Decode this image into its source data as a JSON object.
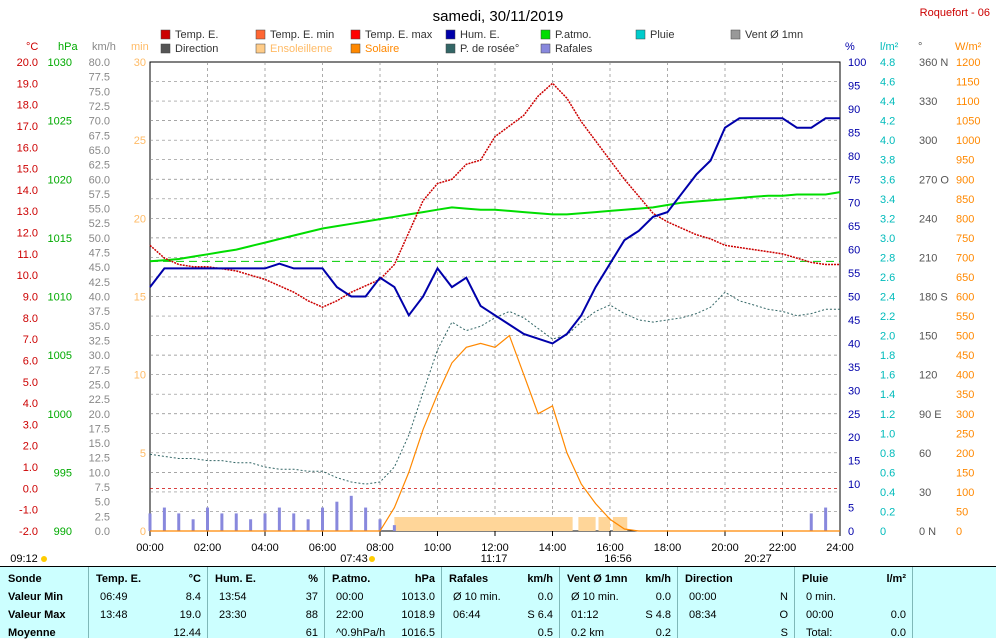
{
  "title": "samedi, 30/11/2019",
  "station": "Roquefort - 06",
  "legend": [
    {
      "label": "Temp. E.",
      "color": "#cc0000"
    },
    {
      "label": "Temp. E. min",
      "color": "#ff6633"
    },
    {
      "label": "Temp. E. max",
      "color": "#ff0000"
    },
    {
      "label": "Hum. E.",
      "color": "#0000aa"
    },
    {
      "label": "P.atmo.",
      "color": "#00dd00"
    },
    {
      "label": "Pluie",
      "color": "#00cccc"
    },
    {
      "label": "Vent Ø 1mn",
      "color": "#999999"
    },
    {
      "label": "Direction",
      "color": "#555555"
    },
    {
      "label": "Ensoleilleme",
      "color": "#ffcc88"
    },
    {
      "label": "Solaire",
      "color": "#ff8800"
    },
    {
      "label": "P. de rosée°",
      "color": "#336666"
    },
    {
      "label": "Rafales",
      "color": "#8888dd"
    }
  ],
  "axes_units": {
    "temp": "°C",
    "press": "hPa",
    "wind": "km/h",
    "min": "min",
    "hum": "%",
    "rain": "l/m²",
    "dir": "°",
    "solar": "W/m²"
  },
  "axis_ticks": {
    "temp": [
      "20.0",
      "19.0",
      "18.0",
      "17.0",
      "16.0",
      "15.0",
      "14.0",
      "13.0",
      "12.0",
      "11.0",
      "10.0",
      "9.0",
      "8.0",
      "7.0",
      "6.0",
      "5.0",
      "4.0",
      "3.0",
      "2.0",
      "1.0",
      "0.0",
      "-1.0",
      "-2.0"
    ],
    "press": [
      "1030",
      "1025",
      "1020",
      "1015",
      "1010",
      "1005",
      "1000",
      "995",
      "990"
    ],
    "wind": [
      "80.0",
      "77.5",
      "75.0",
      "72.5",
      "70.0",
      "67.5",
      "65.0",
      "62.5",
      "60.0",
      "57.5",
      "55.0",
      "52.5",
      "50.0",
      "47.5",
      "45.0",
      "42.5",
      "40.0",
      "37.5",
      "35.0",
      "32.5",
      "30.0",
      "27.5",
      "25.0",
      "22.5",
      "20.0",
      "17.5",
      "15.0",
      "12.5",
      "10.0",
      "7.5",
      "5.0",
      "2.5",
      "0.0"
    ],
    "min": [
      "30",
      "25",
      "20",
      "15",
      "10",
      "5",
      "0"
    ],
    "hum": [
      "100",
      "95",
      "90",
      "85",
      "80",
      "75",
      "70",
      "65",
      "60",
      "55",
      "50",
      "45",
      "40",
      "35",
      "30",
      "25",
      "20",
      "15",
      "10",
      "5",
      "0"
    ],
    "rain": [
      "4.8",
      "4.6",
      "4.4",
      "4.2",
      "4.0",
      "3.8",
      "3.6",
      "3.4",
      "3.2",
      "3.0",
      "2.8",
      "2.6",
      "2.4",
      "2.2",
      "2.0",
      "1.8",
      "1.6",
      "1.4",
      "1.2",
      "1.0",
      "0.8",
      "0.6",
      "0.4",
      "0.2",
      "0"
    ],
    "dir": [
      "360 N",
      "330",
      "300",
      "270 O",
      "240",
      "210",
      "180 S",
      "150",
      "120",
      "90 E",
      "60",
      "30",
      "0 N"
    ],
    "solar": [
      "1200",
      "1150",
      "1100",
      "1050",
      "1000",
      "950",
      "900",
      "850",
      "800",
      "750",
      "700",
      "650",
      "600",
      "550",
      "500",
      "450",
      "400",
      "350",
      "300",
      "250",
      "200",
      "150",
      "100",
      "50",
      "0"
    ],
    "x": [
      "00:00",
      "02:00",
      "04:00",
      "06:00",
      "08:00",
      "10:00",
      "12:00",
      "14:00",
      "16:00",
      "18:00",
      "20:00",
      "22:00",
      "24:00"
    ]
  },
  "sun_events": {
    "sunrise_prev": "09:12",
    "sunrise": "07:43",
    "noon": "11:17",
    "sunset": "16:56",
    "moon": "20:27"
  },
  "chart_data": {
    "type": "line",
    "title": "samedi, 30/11/2019",
    "x_hours": [
      0,
      0.5,
      1,
      1.5,
      2,
      2.5,
      3,
      3.5,
      4,
      4.5,
      5,
      5.5,
      6,
      6.5,
      7,
      7.5,
      8,
      8.5,
      9,
      9.5,
      10,
      10.5,
      11,
      11.5,
      12,
      12.5,
      13,
      13.5,
      14,
      14.5,
      15,
      15.5,
      16,
      16.5,
      17,
      17.5,
      18,
      18.5,
      19,
      19.5,
      20,
      20.5,
      21,
      21.5,
      22,
      22.5,
      23,
      23.5,
      24
    ],
    "series": [
      {
        "name": "Temp. E.",
        "unit": "°C",
        "values": [
          11.4,
          10.8,
          10.5,
          10.4,
          10.4,
          10.3,
          10.2,
          10.0,
          9.8,
          9.5,
          9.2,
          8.8,
          8.5,
          8.8,
          9.2,
          9.5,
          9.8,
          10.5,
          12.0,
          13.5,
          14.3,
          14.5,
          15.2,
          15.4,
          16.5,
          17.0,
          17.5,
          18.4,
          19.0,
          18.3,
          17.2,
          16.3,
          15.4,
          14.5,
          13.7,
          12.9,
          12.5,
          12.2,
          11.9,
          11.7,
          11.4,
          11.3,
          11.2,
          11.1,
          11.0,
          10.8,
          10.6,
          10.5,
          10.5
        ]
      },
      {
        "name": "Hum. E.",
        "unit": "%",
        "values": [
          52,
          56,
          56,
          56,
          56,
          56,
          56,
          56,
          56,
          57,
          56,
          56,
          56,
          52,
          50,
          50,
          54,
          52,
          46,
          50,
          56,
          52,
          54,
          48,
          46,
          44,
          42,
          41,
          40,
          42,
          46,
          52,
          57,
          62,
          64,
          67,
          68,
          72,
          76,
          79,
          86,
          88,
          88,
          88,
          88,
          86,
          86,
          88,
          88
        ]
      },
      {
        "name": "P.atmo.",
        "unit": "hPa",
        "values": [
          1013.0,
          1013.1,
          1013.2,
          1013.4,
          1013.6,
          1013.8,
          1014.0,
          1014.3,
          1014.6,
          1014.9,
          1015.2,
          1015.5,
          1015.8,
          1016.0,
          1016.2,
          1016.4,
          1016.6,
          1016.8,
          1017.0,
          1017.2,
          1017.4,
          1017.6,
          1017.5,
          1017.4,
          1017.4,
          1017.3,
          1017.2,
          1017.1,
          1017.0,
          1017.0,
          1017.1,
          1017.2,
          1017.3,
          1017.4,
          1017.5,
          1017.6,
          1017.8,
          1018.0,
          1018.1,
          1018.2,
          1018.3,
          1018.4,
          1018.5,
          1018.6,
          1018.6,
          1018.7,
          1018.7,
          1018.7,
          1018.9
        ]
      },
      {
        "name": "P. de rosée°",
        "unit": "°C",
        "values": [
          1.6,
          1.5,
          1.4,
          1.4,
          1.3,
          1.3,
          1.2,
          1.2,
          1.0,
          0.9,
          0.9,
          0.8,
          0.8,
          0.5,
          0.3,
          0.2,
          0.3,
          1.0,
          2.5,
          4.5,
          6.5,
          7.8,
          7.4,
          7.6,
          8.0,
          8.3,
          8.0,
          7.5,
          7.0,
          7.2,
          7.8,
          8.3,
          8.6,
          8.2,
          7.9,
          7.8,
          7.9,
          8.0,
          8.2,
          8.5,
          9.2,
          8.8,
          8.6,
          8.4,
          8.3,
          8.1,
          8.2,
          8.4,
          8.4
        ]
      },
      {
        "name": "Solaire",
        "unit": "W/m²",
        "values": [
          0,
          0,
          0,
          0,
          0,
          0,
          0,
          0,
          0,
          0,
          0,
          0,
          0,
          0,
          0,
          0,
          0,
          60,
          150,
          260,
          350,
          430,
          470,
          480,
          470,
          500,
          400,
          300,
          320,
          200,
          120,
          70,
          30,
          5,
          0,
          0,
          0,
          0,
          0,
          0,
          0,
          0,
          0,
          0,
          0,
          0,
          0,
          0,
          0
        ]
      },
      {
        "name": "Rafales",
        "unit": "km/h",
        "values": [
          3,
          4,
          3,
          2,
          4,
          3,
          3,
          2,
          3,
          4,
          3,
          2,
          4,
          5,
          6,
          4,
          2,
          1,
          0,
          0,
          0,
          0,
          0,
          0,
          0,
          0,
          0,
          0,
          0,
          0,
          0,
          0,
          0,
          0,
          0,
          0,
          0,
          0,
          0,
          0,
          0,
          0,
          0,
          0,
          0,
          0,
          3,
          4,
          0
        ]
      }
    ],
    "sunshine_ranges": [
      [
        8.5,
        14.7
      ],
      [
        14.9,
        15.5
      ],
      [
        15.6,
        16.0
      ],
      [
        16.1,
        16.6
      ]
    ],
    "temp_ylim": [
      -2,
      20
    ],
    "hum_ylim": [
      0,
      100
    ],
    "press_ylim": [
      990,
      1030
    ],
    "solar_ylim": [
      0,
      1200
    ],
    "wind_ylim": [
      0,
      80
    ]
  },
  "stats": {
    "sonde": {
      "title": "Sonde",
      "rows": [
        "Valeur Min",
        "Valeur Max",
        "Moyenne"
      ]
    },
    "temp": {
      "title": "Temp. E.",
      "unit": "°C",
      "rows": [
        [
          "06:49",
          "8.4"
        ],
        [
          "13:48",
          "19.0"
        ],
        [
          "",
          "12.44"
        ]
      ]
    },
    "hum": {
      "title": "Hum. E.",
      "unit": "%",
      "rows": [
        [
          "13:54",
          "37"
        ],
        [
          "23:30",
          "88"
        ],
        [
          "",
          "61"
        ]
      ]
    },
    "press": {
      "title": "P.atmo.",
      "unit": "hPa",
      "rows": [
        [
          "00:00",
          "1013.0"
        ],
        [
          "22:00",
          "1018.9"
        ],
        [
          "^0.9hPa/h",
          "1016.5"
        ]
      ]
    },
    "gust": {
      "title": "Rafales",
      "unit": "km/h",
      "rows": [
        [
          "Ø 10 min.",
          "0.0"
        ],
        [
          "06:44",
          "S 6.4"
        ],
        [
          "",
          "0.5"
        ]
      ]
    },
    "wind": {
      "title": "Vent Ø 1mn",
      "unit": "km/h",
      "rows": [
        [
          "Ø 10 min.",
          "0.0"
        ],
        [
          "01:12",
          "S 4.8"
        ],
        [
          "0.2 km",
          "0.2"
        ]
      ]
    },
    "dir": {
      "title": "Direction",
      "rows": [
        [
          "00:00",
          "N"
        ],
        [
          "08:34",
          "O"
        ],
        [
          "",
          "S"
        ]
      ]
    },
    "rain": {
      "title": "Pluie",
      "unit": "l/m²",
      "rows": [
        [
          "0 min.",
          ""
        ],
        [
          "00:00",
          "0.0"
        ],
        [
          "Total:",
          "0.0"
        ]
      ]
    }
  }
}
